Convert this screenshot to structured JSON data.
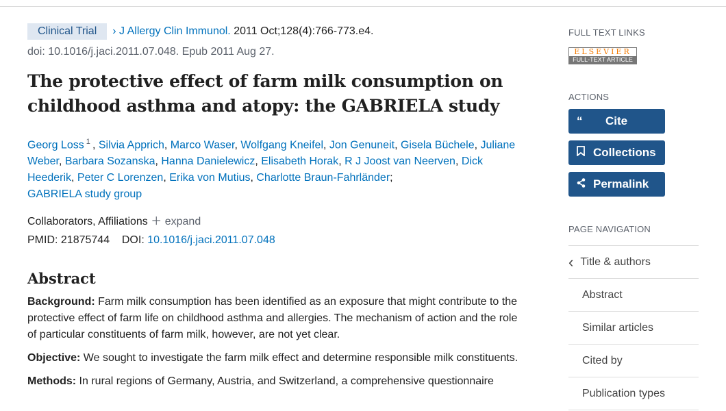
{
  "header": {
    "badge": "Clinical Trial",
    "journal": "J Allergy Clin Immunol.",
    "citation": " 2011 Oct;128(4):766-773.e4.",
    "doi_line": "doi: 10.1016/j.jaci.2011.07.048. Epub 2011 Aug 27."
  },
  "title": "The protective effect of farm milk consumption on childhood asthma and atopy: the GABRIELA study",
  "authors": [
    "Georg Loss",
    "Silvia Apprich",
    "Marco Waser",
    "Wolfgang Kneifel",
    "Jon Genuneit",
    "Gisela Büchele",
    "Juliane Weber",
    "Barbara Sozanska",
    "Hanna Danielewicz",
    "Elisabeth Horak",
    "R J Joost van Neerven",
    "Dick Heederik",
    "Peter C Lorenzen",
    "Erika von Mutius",
    "Charlotte Braun-Fahrländer"
  ],
  "first_author_sup": "1",
  "group": "GABRIELA study group",
  "collab": {
    "label": "Collaborators, Affiliations",
    "expand": "expand"
  },
  "pmid": {
    "label": "PMID:",
    "value": "21875744",
    "doi_label": "DOI:",
    "doi": "10.1016/j.jaci.2011.07.048"
  },
  "abstract": {
    "heading": "Abstract",
    "sections": [
      {
        "label": "Background:",
        "text": " Farm milk consumption has been identified as an exposure that might contribute to the protective effect of farm life on childhood asthma and allergies. The mechanism of action and the role of particular constituents of farm milk, however, are not yet clear."
      },
      {
        "label": "Objective:",
        "text": " We sought to investigate the farm milk effect and determine responsible milk constituents."
      },
      {
        "label": "Methods:",
        "text": " In rural regions of Germany, Austria, and Switzerland, a comprehensive questionnaire"
      }
    ]
  },
  "sidebar": {
    "full_text": "FULL TEXT LINKS",
    "elsevier_top": "ELSEVIER",
    "elsevier_bottom": "FULL-TEXT ARTICLE",
    "actions": "ACTIONS",
    "cite": "Cite",
    "collections": "Collections",
    "permalink": "Permalink",
    "page_nav": "PAGE NAVIGATION",
    "nav": [
      "Title & authors",
      "Abstract",
      "Similar articles",
      "Cited by",
      "Publication types"
    ]
  },
  "colors": {
    "link": "#0071bc",
    "button": "#20558a",
    "badge_bg": "#dfe7f1"
  }
}
